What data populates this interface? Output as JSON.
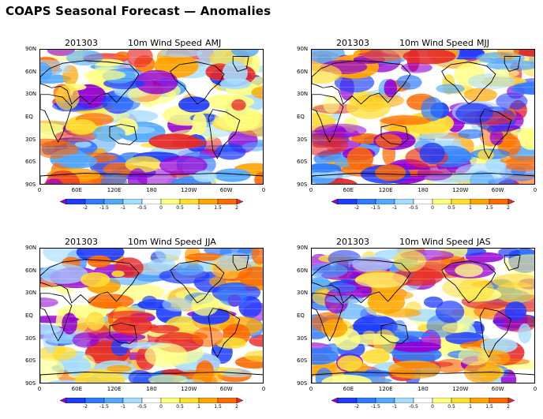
{
  "page": {
    "title": "COAPS Seasonal Forecast — Anomalies"
  },
  "panels": [
    {
      "date": "201303",
      "variable": "10m Wind Speed",
      "season": "AMJ",
      "seed": 11
    },
    {
      "date": "201303",
      "variable": "10m Wind Speed",
      "season": "MJJ",
      "seed": 23
    },
    {
      "date": "201303",
      "variable": "10m Wind Speed",
      "season": "JJA",
      "seed": 37
    },
    {
      "date": "201303",
      "variable": "10m Wind Speed",
      "season": "JAS",
      "seed": 53
    }
  ],
  "axes": {
    "lat_labels": [
      "90N",
      "60N",
      "30N",
      "EQ",
      "30S",
      "60S",
      "90S"
    ],
    "lon_labels": [
      "0",
      "60E",
      "120E",
      "180",
      "120W",
      "60W",
      "0"
    ]
  },
  "colorbar": {
    "labels": [
      "-2",
      "-1.5",
      "-1",
      "-0.5",
      "0",
      "0.5",
      "1",
      "1.5",
      "2"
    ],
    "colors": [
      "#9400d3",
      "#1e3cff",
      "#2e7bff",
      "#52a8ff",
      "#a6dcff",
      "#ffffff",
      "#ffff7f",
      "#ffdd33",
      "#ffa500",
      "#ff6a00",
      "#e62828"
    ]
  }
}
